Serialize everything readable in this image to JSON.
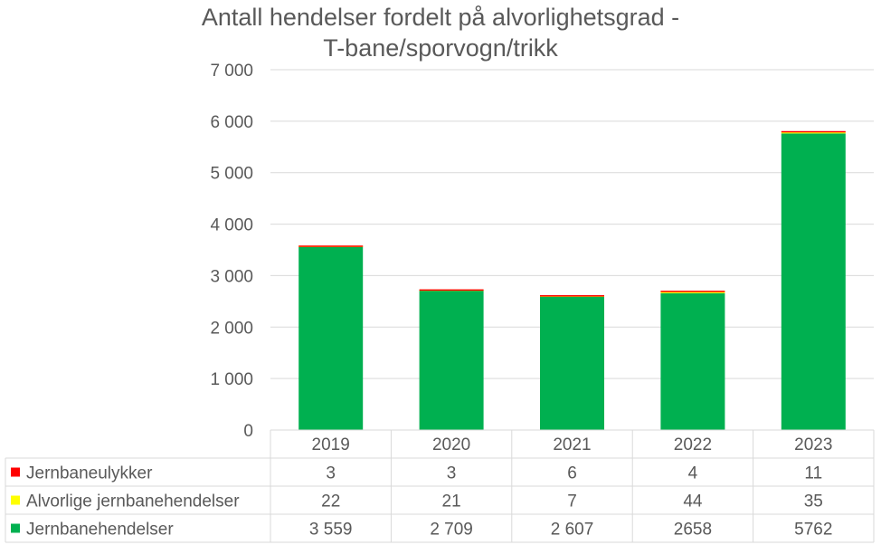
{
  "chart_data": {
    "type": "bar",
    "stacked": true,
    "title_lines": [
      "Antall hendelser fordelt på alvorlighetsgrad -",
      "T-bane/sporvogn/trikk"
    ],
    "categories": [
      "2019",
      "2020",
      "2021",
      "2022",
      "2023"
    ],
    "ylim": [
      0,
      7000
    ],
    "y_ticks": [
      0,
      1000,
      2000,
      3000,
      4000,
      5000,
      6000,
      7000
    ],
    "y_tick_labels": [
      "0",
      "1 000",
      "2 000",
      "3 000",
      "4 000",
      "5 000",
      "6 000",
      "7 000"
    ],
    "grid": true,
    "legend_placement": "data-table-left",
    "series": [
      {
        "name": "Jernbanehendelser",
        "color": "#00B050",
        "values": [
          3559,
          2709,
          2607,
          2658,
          5762
        ],
        "labels": [
          "3 559",
          "2 709",
          "2 607",
          "2658",
          "5762"
        ]
      },
      {
        "name": "Alvorlige jernbanehendelser",
        "color": "#FFFF00",
        "values": [
          22,
          21,
          7,
          44,
          35
        ],
        "labels": [
          "22",
          "21",
          "7",
          "44",
          "35"
        ]
      },
      {
        "name": "Jernbaneulykker",
        "color": "#FF0000",
        "values": [
          3,
          3,
          6,
          4,
          11
        ],
        "labels": [
          "3",
          "3",
          "6",
          "4",
          "11"
        ]
      }
    ],
    "table_row_order": [
      "Jernbaneulykker",
      "Alvorlige jernbanehendelser",
      "Jernbanehendelser"
    ]
  }
}
